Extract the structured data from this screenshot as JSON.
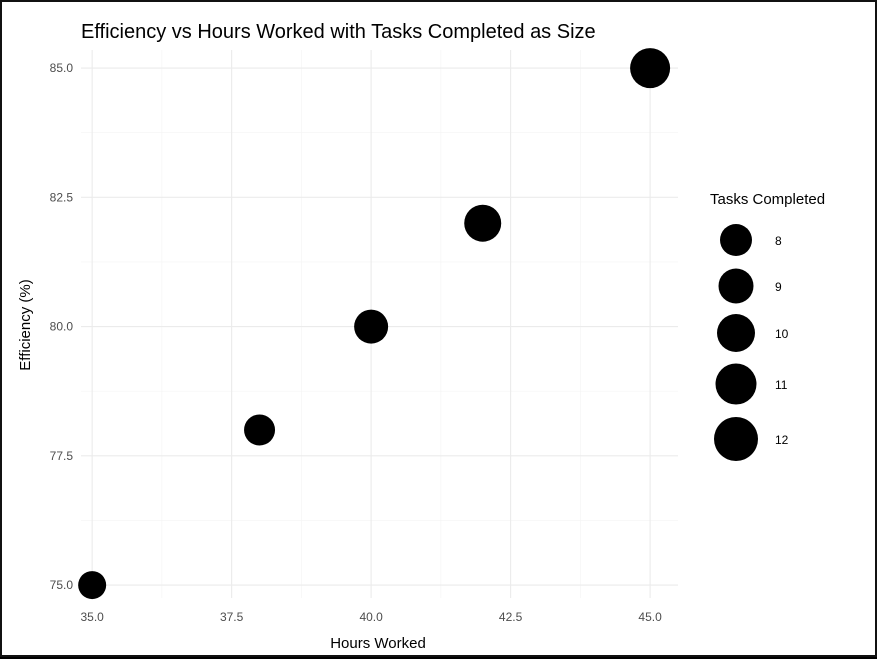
{
  "chart_data": {
    "type": "scatter",
    "title": "Efficiency vs Hours Worked with Tasks Completed as Size",
    "xlabel": "Hours Worked",
    "ylabel": "Efficiency (%)",
    "xlim": [
      34.8,
      45.5
    ],
    "ylim": [
      74.75,
      85.35
    ],
    "x_ticks": [
      35.0,
      37.5,
      40.0,
      42.5,
      45.0
    ],
    "y_ticks": [
      75.0,
      77.5,
      80.0,
      82.5,
      85.0
    ],
    "x_tick_labels": [
      "35.0",
      "37.5",
      "40.0",
      "42.5",
      "45.0"
    ],
    "y_tick_labels": [
      "75.0",
      "77.5",
      "80.0",
      "82.5",
      "85.0"
    ],
    "grid": true,
    "points": [
      {
        "x": 35,
        "y": 75,
        "size": 8
      },
      {
        "x": 38,
        "y": 78,
        "size": 9
      },
      {
        "x": 40,
        "y": 80,
        "size": 10
      },
      {
        "x": 42,
        "y": 82,
        "size": 11
      },
      {
        "x": 45,
        "y": 85,
        "size": 12
      }
    ],
    "legend": {
      "title": "Tasks Completed",
      "placement": "right",
      "entries": [
        {
          "label": "8",
          "size": 8
        },
        {
          "label": "9",
          "size": 9
        },
        {
          "label": "10",
          "size": 10
        },
        {
          "label": "11",
          "size": 11
        },
        {
          "label": "12",
          "size": 12
        }
      ]
    },
    "point_color": "#000000"
  }
}
